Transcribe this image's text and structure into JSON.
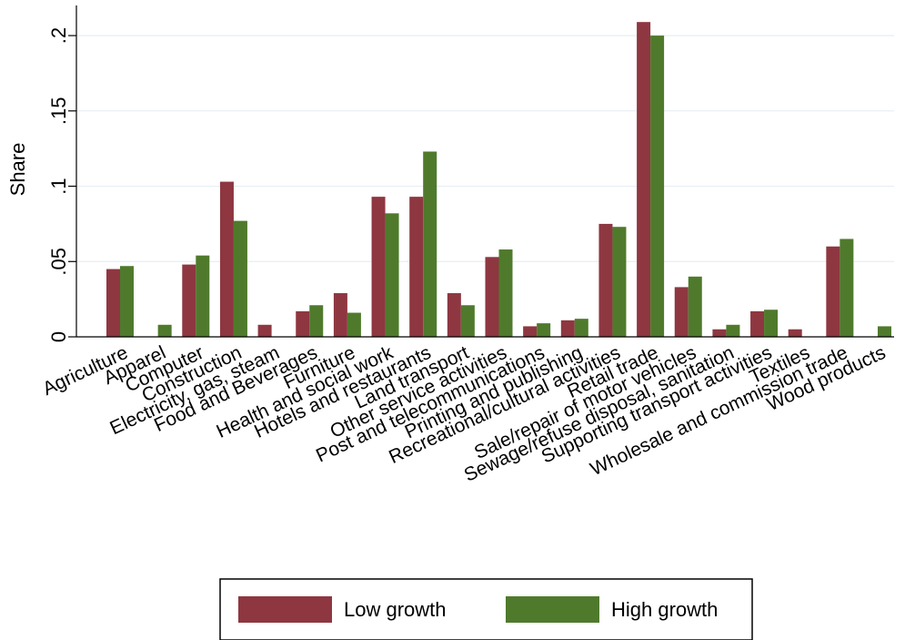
{
  "chart_data": {
    "type": "bar",
    "title": "",
    "xlabel": "",
    "ylabel": "Share",
    "ylim": [
      0,
      0.22
    ],
    "yticks": [
      {
        "value": 0,
        "label": "0"
      },
      {
        "value": 0.05,
        "label": ".05"
      },
      {
        "value": 0.1,
        "label": ".1"
      },
      {
        "value": 0.15,
        "label": ".15"
      },
      {
        "value": 0.2,
        "label": ".2"
      }
    ],
    "grid": true,
    "legend_position": "bottom",
    "categories": [
      "Agriculture",
      "Apparel",
      "Computer",
      "Construction",
      "Electricity, gas, steam",
      "Food and Beverages",
      "Furniture",
      "Health and social work",
      "Hotels and restaurants",
      "Land transport",
      "Other service activities",
      "Post and telecommunications",
      "Printing and publishing",
      "Recreational/cultural activities",
      "Retail trade",
      "Sale/repair of motor vehicles",
      "Sewage/refuse disposal, sanitation",
      "Supporting transport activities",
      "Textiles",
      "Wholesale and commission trade",
      "Wood products"
    ],
    "series": [
      {
        "name": "Low growth",
        "color": "#8e3741",
        "values": [
          0.045,
          0.0,
          0.048,
          0.103,
          0.008,
          0.017,
          0.029,
          0.093,
          0.093,
          0.029,
          0.053,
          0.007,
          0.011,
          0.075,
          0.209,
          0.033,
          0.005,
          0.017,
          0.005,
          0.06,
          0.0
        ]
      },
      {
        "name": "High growth",
        "color": "#4f7a2c",
        "values": [
          0.047,
          0.008,
          0.054,
          0.077,
          0.0,
          0.021,
          0.016,
          0.082,
          0.123,
          0.021,
          0.058,
          0.009,
          0.012,
          0.073,
          0.2,
          0.04,
          0.008,
          0.018,
          0.0,
          0.065,
          0.007
        ]
      }
    ]
  }
}
